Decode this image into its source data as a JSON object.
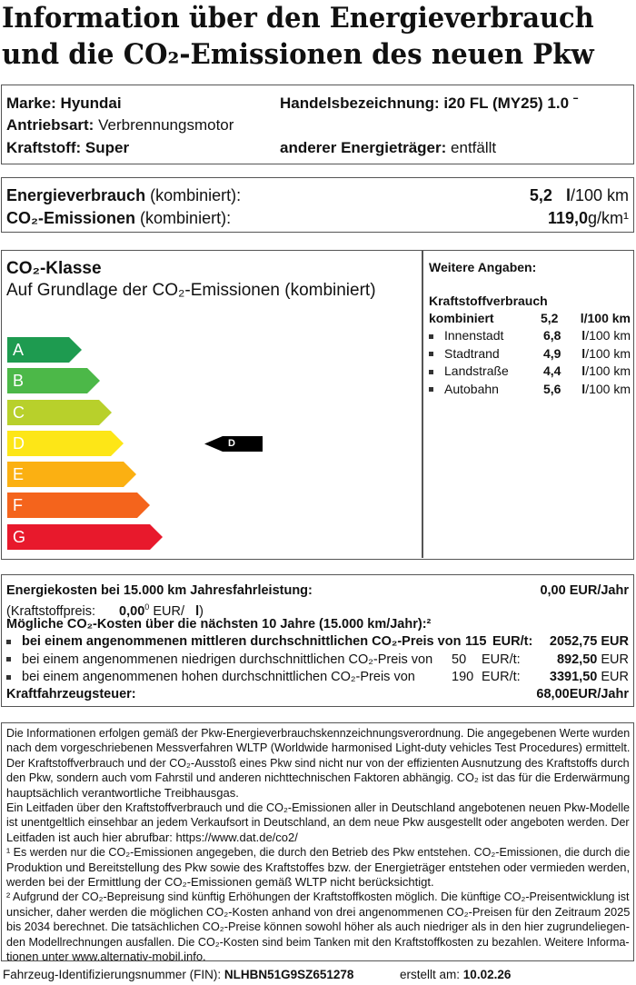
{
  "title": {
    "line1": "Information über den Energieverbrauch",
    "line2": "und die CO₂-Emissionen des neuen Pkw"
  },
  "vehicle": {
    "marke_label": "Marke:",
    "marke": "Hyundai",
    "handel_label": "Handelsbezeichnung:",
    "handel": "i20 FL (MY25) 1.0 ˉ",
    "antrieb_label": "Antriebsart:",
    "antrieb": "Verbrennungsmotor",
    "kraftstoff_label": "Kraftstoff:",
    "kraftstoff": "Super",
    "anderer_label": "anderer Energieträger:",
    "anderer": "entfällt"
  },
  "consumption": {
    "energy_label": "Energieverbrauch",
    "energy_suffix": "(kombiniert):",
    "energy_value": "5,2",
    "energy_unit_l": "l",
    "energy_unit": "/100 km",
    "co2_label": "CO₂-Emissionen",
    "co2_suffix": "(kombiniert):",
    "co2_value": "119,0",
    "co2_unit": "g/km¹"
  },
  "co2class": {
    "title": "CO₂-Klasse",
    "subtitle": "Auf Grundlage der CO₂-Emissionen (kombiniert)",
    "classes": [
      {
        "label": "A",
        "color": "#1e9b50"
      },
      {
        "label": "B",
        "color": "#4cb848"
      },
      {
        "label": "C",
        "color": "#b8d02b"
      },
      {
        "label": "D",
        "color": "#fde617"
      },
      {
        "label": "E",
        "color": "#fbb012"
      },
      {
        "label": "F",
        "color": "#f4641c"
      },
      {
        "label": "G",
        "color": "#e8192c"
      }
    ],
    "current": "D"
  },
  "weitere": {
    "title": "Weitere Angaben:",
    "heading": "Kraftstoffverbrauch",
    "kombiniert_label": "kombiniert",
    "kombiniert_value": "5,2",
    "kombiniert_unit": "l/100 km",
    "items": [
      {
        "label": "Innenstadt",
        "value": "6,8",
        "unit_l": "l",
        "unit": "/100 km"
      },
      {
        "label": "Stadtrand",
        "value": "4,9",
        "unit_l": "l",
        "unit": "/100 km"
      },
      {
        "label": "Landstraße",
        "value": "4,4",
        "unit_l": "l",
        "unit": "/100 km"
      },
      {
        "label": "Autobahn",
        "value": "5,6",
        "unit_l": "l",
        "unit": "/100 km"
      }
    ]
  },
  "costs": {
    "energy_label": "Energiekosten bei 15.000 km Jahresfahrleistung:",
    "energy_value": "0,00 EUR/Jahr",
    "price_label": "(Kraftstoffpreis:",
    "price_value": "0,00",
    "price_sup": "0",
    "price_unit": "EUR/",
    "price_l": "l",
    ")": ")",
    "co2_heading": "Mögliche CO₂-Kosten über die nächsten 10 Jahre (15.000 km/Jahr):²",
    "scenarios": [
      {
        "text": "bei einem angenommenen mittleren durchschnittlichen CO₂-Preis von",
        "price": "115",
        "unit": "EUR/t:",
        "value": "2052,75",
        "cur": "EUR"
      },
      {
        "text": "bei einem angenommenen niedrigen durchschnittlichen CO₂-Preis von",
        "price": "50",
        "unit": "EUR/t:",
        "value": "892,50",
        "cur": "EUR"
      },
      {
        "text": "bei einem angenommenen hohen durchschnittlichen CO₂-Preis von",
        "price": "190",
        "unit": "EUR/t:",
        "value": "3391,50",
        "cur": "EUR"
      }
    ],
    "tax_label": "Kraftfahrzeugsteuer:",
    "tax_value": "68,00",
    "tax_unit": "EUR/Jahr"
  },
  "info": {
    "lines": [
      "Die Informationen erfolgen gemäß der Pkw-Energieverbrauchskennzeichnungsverordnung. Die angegebenen Werte wurden",
      "nach dem vorgeschriebenen Messverfahren WLTP (Worldwide harmonised Light-duty vehicles Test Procedures) ermittelt.",
      "Der Kraftstoffverbrauch und der CO₂-Ausstoß eines Pkw sind nicht nur von der effizienten Ausnutzung des Kraftstoffs durch",
      "den Pkw, sondern auch vom Fahrstil und anderen nichttechnischen Faktoren abhängig. CO₂ ist das für die Erderwärmung",
      "hauptsächlich verantwortliche Treibhausgas.",
      "Ein Leitfaden über den Kraftstoffverbrauch und die CO₂-Emissionen aller in Deutschland angebotenen neuen Pkw-Modelle",
      "ist unentgeltlich einsehbar an jedem Verkaufsort in Deutschland, an dem neue Pkw ausgestellt oder angeboten werden. Der",
      "Leitfaden ist auch hier abrufbar:   https://www.dat.de/co2/",
      "¹ Es werden nur die CO₂-Emissionen angegeben, die durch den Betrieb des Pkw entstehen. CO₂-Emissionen, die durch die",
      "   Produktion und Bereitstellung des Pkw sowie des Kraftstoffes bzw. der Energieträger entstehen oder vermieden werden,",
      "   werden bei der Ermittlung der CO₂-Emissionen gemäß WLTP nicht berücksichtigt.",
      "² Aufgrund der CO₂-Bepreisung sind künftig Erhöhungen der Kraftstoffkosten möglich. Die künftige CO₂-Preisentwicklung ist",
      "   unsicher, daher werden die möglichen CO₂-Kosten anhand von drei angenommenen CO₂-Preisen für den Zeitraum  2025",
      "   bis   2034    berechnet. Die tatsächlichen CO₂-Preise können sowohl höher als auch niedriger als in den hier zugrundeliegen-",
      "   den Modellrechnungen ausfallen. Die CO₂-Kosten sind beim Tanken mit den Kraftstoffkosten zu bezahlen. Weitere Informa-",
      "   tionen unter www.alternativ-mobil.info."
    ]
  },
  "footer": {
    "fin_label": "Fahrzeug-Identifizierungsnummer (FIN):",
    "fin": "NLHBN51G9SZ651278",
    "date_label": "erstellt am:",
    "date": "10.02.26"
  }
}
